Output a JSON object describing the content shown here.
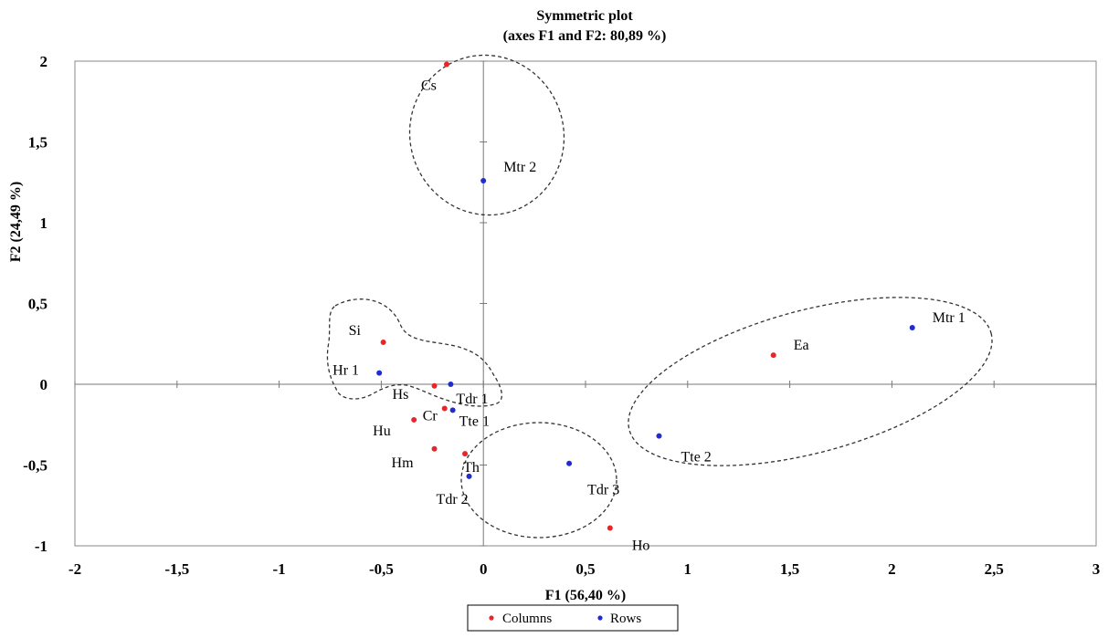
{
  "chart_data": {
    "type": "scatter",
    "title": "Symmetric plot",
    "subtitle": "(axes F1 and F2: 80,89 %)",
    "xlabel": "F1 (56,40 %)",
    "ylabel": "F2 (24,49 %)",
    "xlim": [
      -2,
      3
    ],
    "ylim": [
      -1,
      2
    ],
    "xticks": [
      -2,
      -1.5,
      -1,
      -0.5,
      0,
      0.5,
      1,
      1.5,
      2,
      2.5,
      3
    ],
    "xtick_labels": [
      "-2",
      "-1,5",
      "-1",
      "-0,5",
      "0",
      "0,5",
      "1",
      "1,5",
      "2",
      "2,5",
      "3"
    ],
    "yticks": [
      -1,
      -0.5,
      0,
      0.5,
      1,
      1.5,
      2
    ],
    "ytick_labels": [
      "-1",
      "-0,5",
      "0",
      "0,5",
      "1",
      "1,5",
      "2"
    ],
    "grid": false,
    "legend_position": "bottom-center",
    "series": [
      {
        "name": "Columns",
        "color": "#e8262a",
        "points": [
          {
            "label": "Cs",
            "x": -0.18,
            "y": 1.98
          },
          {
            "label": "Si",
            "x": -0.49,
            "y": 0.26
          },
          {
            "label": "Ea",
            "x": 1.42,
            "y": 0.18
          },
          {
            "label": "Hs",
            "x": -0.24,
            "y": -0.01
          },
          {
            "label": "Cr",
            "x": -0.19,
            "y": -0.15
          },
          {
            "label": "Hu",
            "x": -0.34,
            "y": -0.22
          },
          {
            "label": "Hm",
            "x": -0.24,
            "y": -0.4
          },
          {
            "label": "Th",
            "x": -0.09,
            "y": -0.43
          },
          {
            "label": "Ho",
            "x": 0.62,
            "y": -0.89
          }
        ]
      },
      {
        "name": "Rows",
        "color": "#1f2bd6",
        "points": [
          {
            "label": "Mtr 2",
            "x": 0.0,
            "y": 1.26
          },
          {
            "label": "Mtr 1",
            "x": 2.1,
            "y": 0.35
          },
          {
            "label": "Hr 1",
            "x": -0.51,
            "y": 0.07
          },
          {
            "label": "Tdr 1",
            "x": -0.16,
            "y": 0.0
          },
          {
            "label": "Tte 1",
            "x": -0.15,
            "y": -0.16
          },
          {
            "label": "Tte 2",
            "x": 0.86,
            "y": -0.32
          },
          {
            "label": "Tdr 3",
            "x": 0.42,
            "y": -0.49
          },
          {
            "label": "Tdr 2",
            "x": -0.07,
            "y": -0.57
          }
        ]
      }
    ]
  }
}
